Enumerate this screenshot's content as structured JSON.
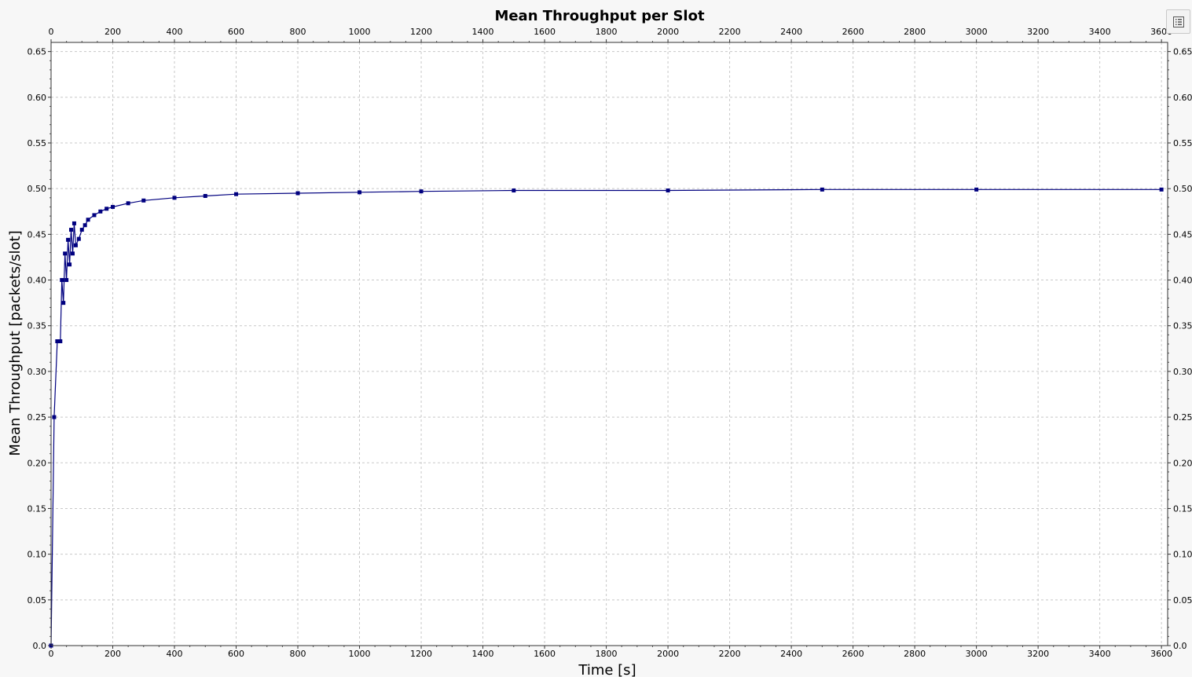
{
  "chart_data": {
    "type": "line",
    "title": "Mean Throughput per Slot",
    "xlabel": "Time [s]",
    "ylabel": "Mean Throughput [packets/slot]",
    "xlim": [
      0,
      3620
    ],
    "ylim": [
      0,
      0.66
    ],
    "x_ticks": [
      "0",
      "200",
      "400",
      "600",
      "800",
      "1000",
      "1200",
      "1400",
      "1600",
      "1800",
      "2000",
      "2200",
      "2400",
      "2600",
      "2800",
      "3000",
      "3200",
      "3400",
      "3600"
    ],
    "y_ticks": [
      "0.0",
      "0.05",
      "0.10",
      "0.15",
      "0.20",
      "0.25",
      "0.30",
      "0.35",
      "0.40",
      "0.45",
      "0.50",
      "0.55",
      "0.60",
      "0.65"
    ],
    "grid": true,
    "legend": "hidden",
    "series": [
      {
        "color": "#00007f",
        "marker": "square",
        "x": [
          0,
          10,
          20,
          30,
          35,
          40,
          45,
          50,
          55,
          60,
          65,
          70,
          75,
          80,
          90,
          100,
          110,
          120,
          140,
          160,
          180,
          200,
          250,
          300,
          400,
          500,
          600,
          800,
          1000,
          1200,
          1500,
          2000,
          2500,
          3000,
          3600
        ],
        "y": [
          0.0,
          0.25,
          0.333,
          0.333,
          0.4,
          0.375,
          0.429,
          0.4,
          0.444,
          0.417,
          0.455,
          0.429,
          0.462,
          0.438,
          0.445,
          0.455,
          0.46,
          0.466,
          0.471,
          0.475,
          0.478,
          0.48,
          0.484,
          0.487,
          0.49,
          0.492,
          0.494,
          0.495,
          0.496,
          0.497,
          0.498,
          0.498,
          0.499,
          0.499,
          0.499
        ]
      }
    ]
  }
}
